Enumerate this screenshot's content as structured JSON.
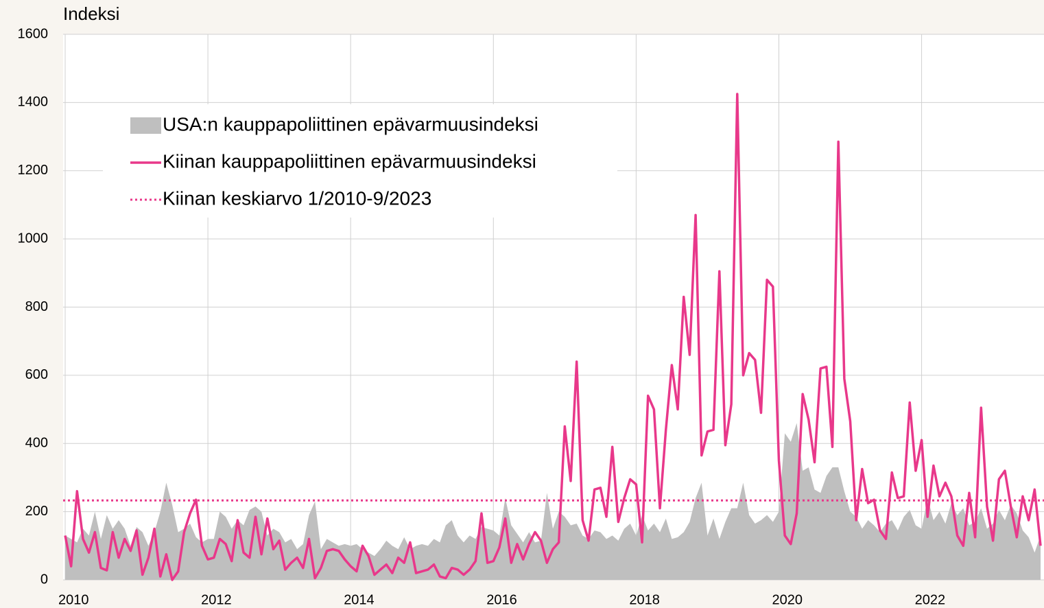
{
  "chart_data": {
    "type": "line",
    "y_axis_title": "Indeksi",
    "categories": [
      "2010",
      null,
      null,
      null,
      null,
      null,
      null,
      null,
      null,
      null,
      null,
      null,
      null,
      null,
      null,
      null,
      null,
      null,
      null,
      null,
      null,
      null,
      null,
      null,
      "2012",
      null,
      null,
      null,
      null,
      null,
      null,
      null,
      null,
      null,
      null,
      null,
      null,
      null,
      null,
      null,
      null,
      null,
      null,
      null,
      null,
      null,
      null,
      null,
      "2014",
      null,
      null,
      null,
      null,
      null,
      null,
      null,
      null,
      null,
      null,
      null,
      null,
      null,
      null,
      null,
      null,
      null,
      null,
      null,
      null,
      null,
      null,
      null,
      "2016",
      null,
      null,
      null,
      null,
      null,
      null,
      null,
      null,
      null,
      null,
      null,
      null,
      null,
      null,
      null,
      null,
      null,
      null,
      null,
      null,
      null,
      null,
      null,
      "2018",
      null,
      null,
      null,
      null,
      null,
      null,
      null,
      null,
      null,
      null,
      null,
      null,
      null,
      null,
      null,
      null,
      null,
      null,
      null,
      null,
      null,
      null,
      null,
      "2020",
      null,
      null,
      null,
      null,
      null,
      null,
      null,
      null,
      null,
      null,
      null,
      null,
      null,
      null,
      null,
      null,
      null,
      null,
      null,
      null,
      null,
      null,
      null,
      "2022",
      null,
      null,
      null,
      null,
      null,
      null,
      null,
      null,
      null,
      null,
      null,
      null,
      null,
      null,
      null,
      null,
      null,
      null,
      null,
      null
    ],
    "series": [
      {
        "name": "USA:n kauppapoliittinen epävarmuusindeksi",
        "style": "area",
        "color": "#bfbfbf",
        "values": [
          130,
          120,
          110,
          150,
          130,
          200,
          120,
          190,
          150,
          175,
          150,
          100,
          155,
          140,
          100,
          140,
          200,
          285,
          220,
          140,
          150,
          165,
          125,
          110,
          120,
          120,
          200,
          185,
          150,
          175,
          160,
          205,
          215,
          200,
          130,
          150,
          140,
          110,
          120,
          90,
          105,
          190,
          230,
          90,
          120,
          110,
          100,
          105,
          100,
          105,
          90,
          80,
          70,
          90,
          115,
          100,
          90,
          125,
          90,
          100,
          105,
          100,
          120,
          110,
          160,
          175,
          130,
          110,
          130,
          120,
          155,
          150,
          145,
          130,
          240,
          160,
          135,
          110,
          140,
          110,
          115,
          255,
          150,
          200,
          185,
          160,
          165,
          130,
          120,
          145,
          140,
          120,
          130,
          115,
          150,
          165,
          130,
          190,
          145,
          165,
          140,
          180,
          120,
          125,
          140,
          170,
          240,
          285,
          130,
          180,
          120,
          170,
          210,
          210,
          285,
          190,
          165,
          175,
          190,
          170,
          200,
          430,
          405,
          460,
          320,
          330,
          265,
          255,
          305,
          330,
          330,
          260,
          200,
          185,
          150,
          175,
          160,
          140,
          165,
          175,
          145,
          185,
          205,
          160,
          150,
          240,
          175,
          200,
          165,
          225,
          190,
          210,
          160,
          170,
          210,
          150,
          165,
          205,
          175,
          220,
          195,
          145,
          125,
          80,
          130
        ]
      },
      {
        "name": "Kiinan kauppapoliittinen epävarmuusindeksi",
        "style": "line",
        "color": "#e8388a",
        "values": [
          130,
          40,
          260,
          120,
          80,
          140,
          35,
          28,
          140,
          65,
          120,
          85,
          145,
          15,
          65,
          150,
          10,
          75,
          0,
          25,
          140,
          195,
          235,
          100,
          60,
          65,
          120,
          105,
          55,
          175,
          80,
          65,
          185,
          75,
          180,
          90,
          115,
          30,
          50,
          65,
          35,
          120,
          5,
          35,
          85,
          90,
          85,
          60,
          40,
          25,
          100,
          70,
          15,
          30,
          45,
          20,
          65,
          50,
          110,
          20,
          25,
          30,
          45,
          10,
          5,
          35,
          30,
          15,
          30,
          55,
          195,
          50,
          55,
          95,
          180,
          50,
          105,
          60,
          105,
          140,
          115,
          50,
          90,
          110,
          450,
          290,
          640,
          175,
          115,
          265,
          270,
          185,
          390,
          170,
          240,
          295,
          280,
          110,
          540,
          500,
          210,
          440,
          630,
          500,
          830,
          660,
          1070,
          365,
          435,
          440,
          905,
          395,
          515,
          1425,
          600,
          665,
          645,
          490,
          880,
          860,
          350,
          130,
          105,
          195,
          545,
          470,
          345,
          620,
          625,
          390,
          1285,
          590,
          465,
          175,
          325,
          225,
          235,
          145,
          120,
          315,
          240,
          245,
          520,
          320,
          410,
          185,
          335,
          245,
          285,
          245,
          130,
          100,
          255,
          125,
          505,
          215,
          115,
          295,
          320,
          215,
          125,
          245,
          175,
          265,
          100
        ]
      }
    ],
    "reference_line": {
      "name": "Kiinan keskiarvo 1/2010-9/2023",
      "value": 233,
      "color": "#e8388a",
      "dash": "dotted"
    },
    "ylim": [
      0,
      1600
    ],
    "yticks": [
      0,
      200,
      400,
      600,
      800,
      1000,
      1200,
      1400,
      1600
    ],
    "grid": true,
    "legend": "upper left"
  }
}
